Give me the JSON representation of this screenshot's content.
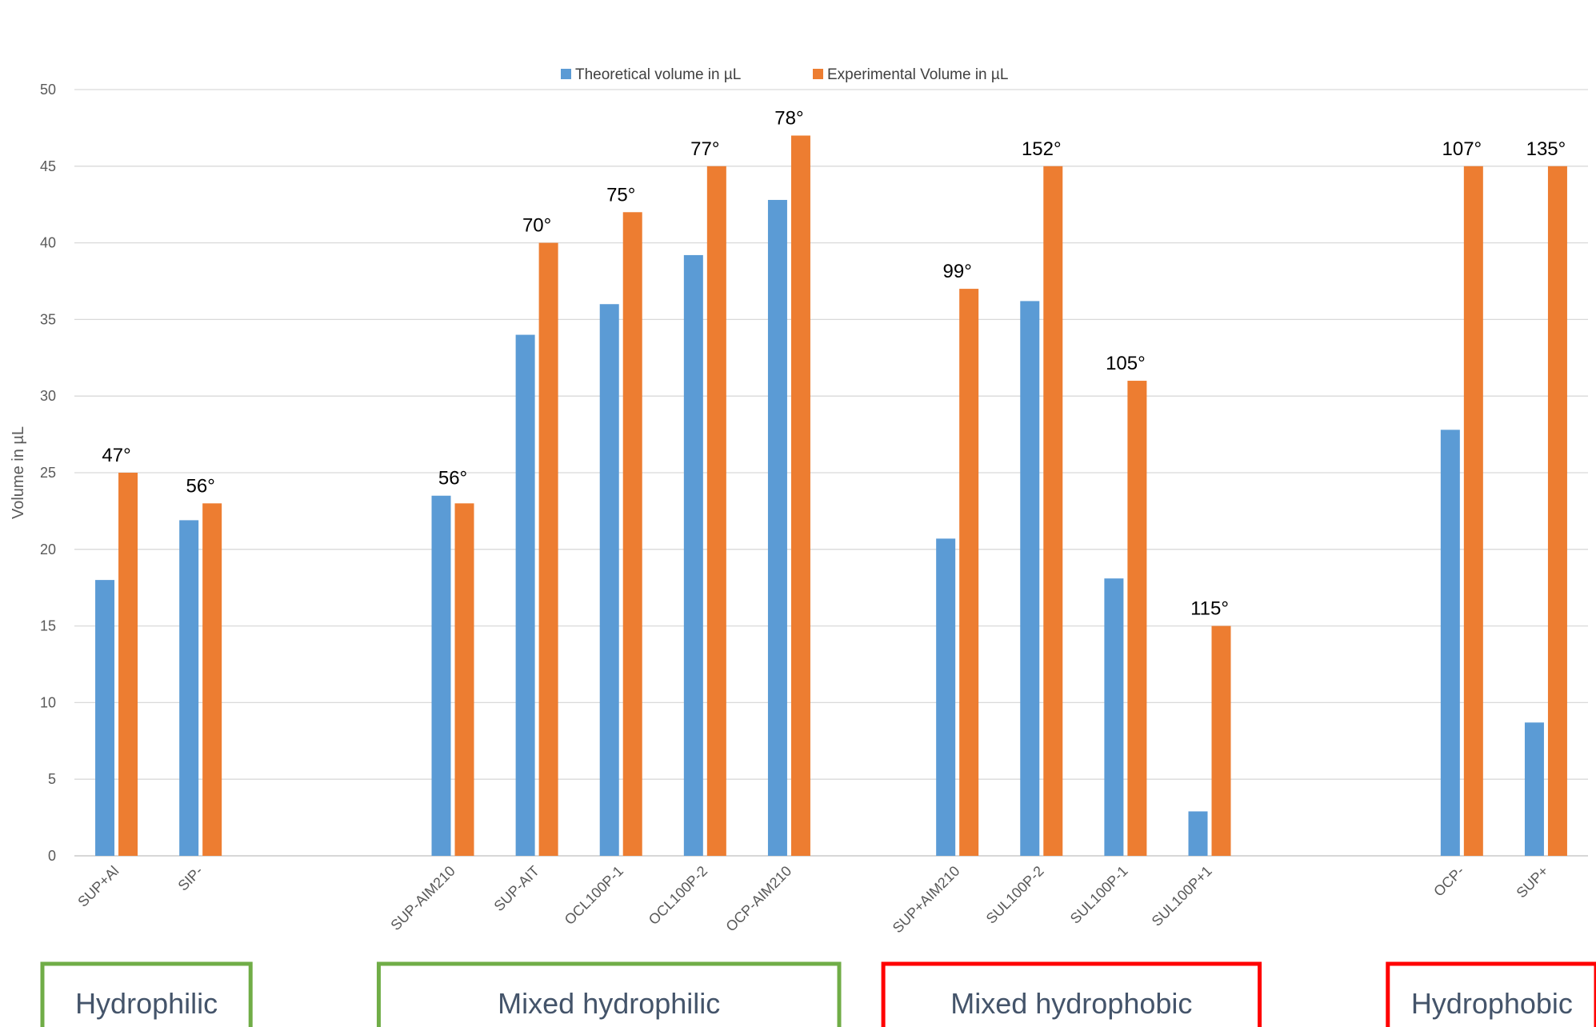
{
  "chart_data": {
    "type": "bar",
    "title": "",
    "xlabel": "",
    "ylabel": "Volume in µL",
    "ylim": [
      0,
      50
    ],
    "yticks": [
      0,
      5,
      10,
      15,
      20,
      25,
      30,
      35,
      40,
      45,
      50
    ],
    "grid": true,
    "legend_position": "top",
    "categories": [
      "SUP+Al",
      "SIP-",
      "",
      "",
      "SUP-AIM210",
      "SUP-AIT",
      "OCL100P-1",
      "OCL100P-2",
      "OCP-AIM210",
      "",
      "SUP+AIM210",
      "SUL100P-2",
      "SUL100P-1",
      "SUL100P+1",
      "",
      "",
      "OCP-",
      "SUP+"
    ],
    "series": [
      {
        "name": "Theoretical volume in µL",
        "color": "#5b9bd5",
        "values": [
          18,
          21.9,
          null,
          null,
          23.5,
          34,
          36,
          39.2,
          42.8,
          null,
          20.7,
          36.2,
          18.1,
          2.9,
          null,
          null,
          27.8,
          8.7
        ]
      },
      {
        "name": "Experimental Volume in µL",
        "color": "#ed7d31",
        "values": [
          25,
          23,
          null,
          null,
          23,
          40,
          42,
          45,
          47,
          null,
          37,
          45,
          31,
          15,
          null,
          null,
          45,
          45
        ]
      }
    ],
    "annotations": [
      "47°",
      "56°",
      "",
      "",
      "56°",
      "70°",
      "75°",
      "77°",
      "78°",
      "",
      "99°",
      "152°",
      "105°",
      "115°",
      "",
      "",
      "107°",
      "135°"
    ],
    "groups": [
      {
        "label": "Hydrophilic",
        "color": "#70ad47",
        "from": 0,
        "to": 1
      },
      {
        "label": "Mixed hydrophilic",
        "color": "#70ad47",
        "from": 4,
        "to": 8
      },
      {
        "label": "Mixed hydrophobic",
        "color": "#ff0000",
        "from": 10,
        "to": 13
      },
      {
        "label": "Hydrophobic",
        "color": "#ff0000",
        "from": 16,
        "to": 17
      }
    ]
  }
}
